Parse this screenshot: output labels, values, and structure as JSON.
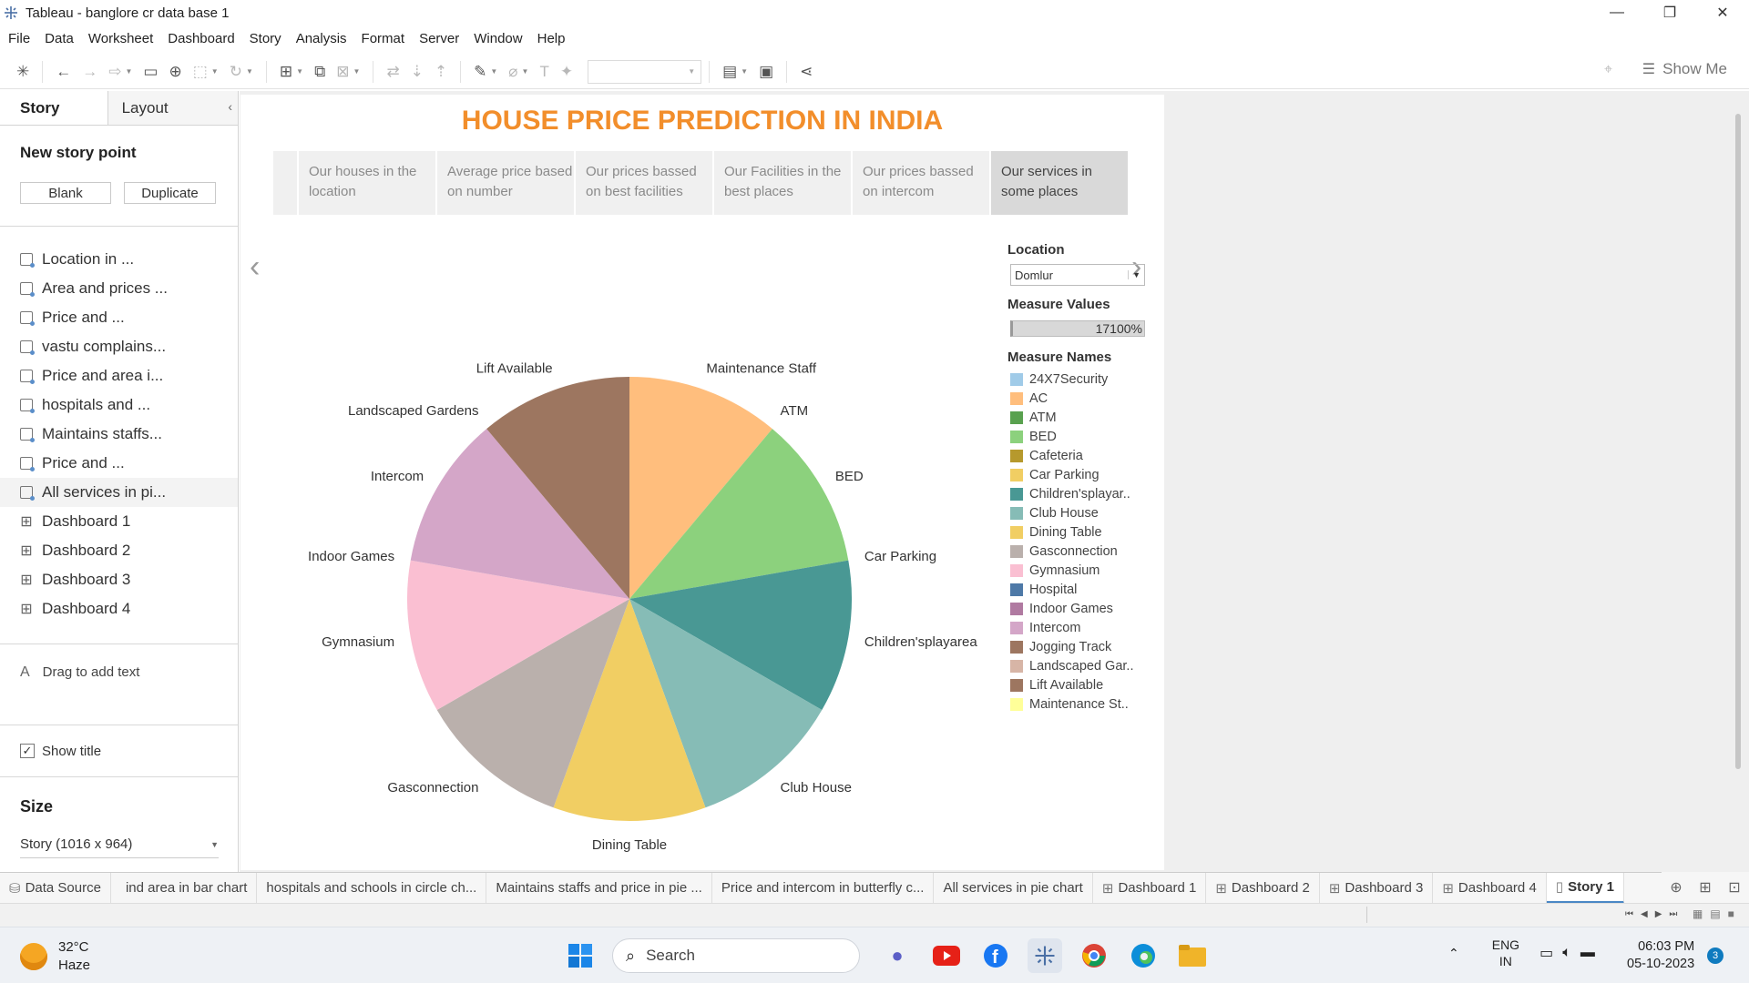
{
  "window": {
    "title": "Tableau - banglore cr data base 1"
  },
  "menu": [
    "File",
    "Data",
    "Worksheet",
    "Dashboard",
    "Story",
    "Analysis",
    "Format",
    "Server",
    "Window",
    "Help"
  ],
  "toolbar": {
    "show_me": "Show Me"
  },
  "sidebar": {
    "tab_story": "Story",
    "tab_layout": "Layout",
    "new_story_point": "New story point",
    "btn_blank": "Blank",
    "btn_duplicate": "Duplicate",
    "sheets": [
      {
        "label": "Location in ...",
        "kind": "worksheet"
      },
      {
        "label": "Area and prices ...",
        "kind": "worksheet"
      },
      {
        "label": "Price and ...",
        "kind": "worksheet"
      },
      {
        "label": "vastu complains...",
        "kind": "worksheet"
      },
      {
        "label": "Price and area i...",
        "kind": "worksheet"
      },
      {
        "label": "hospitals and ...",
        "kind": "worksheet"
      },
      {
        "label": "Maintains staffs...",
        "kind": "worksheet"
      },
      {
        "label": "Price and ...",
        "kind": "worksheet"
      },
      {
        "label": "All services in pi...",
        "kind": "worksheet"
      },
      {
        "label": "Dashboard 1",
        "kind": "dashboard"
      },
      {
        "label": "Dashboard 2",
        "kind": "dashboard"
      },
      {
        "label": "Dashboard 3",
        "kind": "dashboard"
      },
      {
        "label": "Dashboard 4",
        "kind": "dashboard"
      }
    ],
    "drag_text": "Drag to add text",
    "show_title": "Show title",
    "size_header": "Size",
    "size_value": "Story (1016 x 964)"
  },
  "story": {
    "title": "HOUSE PRICE PREDICTION IN INDIA",
    "points": [
      "Our houses in the location",
      "Average price based on number",
      "Our prices bassed on best facilities",
      "Our Facilities in the best places",
      "Our prices bassed on intercom",
      "Our services in some places"
    ],
    "selected_point": 5
  },
  "filters": {
    "location_label": "Location",
    "location_value": "Domlur",
    "measure_values_label": "Measure Values",
    "measure_values_value": "17100%",
    "measure_names_label": "Measure Names",
    "legend": [
      {
        "name": "24X7Security",
        "color": "#a0cbe8"
      },
      {
        "name": "AC",
        "color": "#ffbe7d"
      },
      {
        "name": "ATM",
        "color": "#59a14f"
      },
      {
        "name": "BED",
        "color": "#8cd17d"
      },
      {
        "name": "Cafeteria",
        "color": "#b6992d"
      },
      {
        "name": "Car Parking",
        "color": "#f1ce63"
      },
      {
        "name": "Children'splayar..",
        "color": "#499894"
      },
      {
        "name": "Club House",
        "color": "#86bcb6"
      },
      {
        "name": "Dining Table",
        "color": "#f1ce63"
      },
      {
        "name": "Gasconnection",
        "color": "#bab0ac"
      },
      {
        "name": "Gymnasium",
        "color": "#fabfd2"
      },
      {
        "name": "Hospital",
        "color": "#4e79a7"
      },
      {
        "name": "Indoor Games",
        "color": "#b07aa1"
      },
      {
        "name": "Intercom",
        "color": "#d4a6c8"
      },
      {
        "name": "Jogging Track",
        "color": "#9d7660"
      },
      {
        "name": "Landscaped Gar..",
        "color": "#d7b5a6"
      },
      {
        "name": "Lift Available",
        "color": "#9d7660"
      },
      {
        "name": "Maintenance St..",
        "color": "#ffff99"
      }
    ]
  },
  "chart_data": {
    "type": "pie",
    "title": "",
    "slices": [
      {
        "label": "Maintenance Staff",
        "value": 1,
        "color": "#ffbe7d"
      },
      {
        "label": "ATM",
        "value": 0,
        "color": "#59a14f"
      },
      {
        "label": "BED",
        "value": 1,
        "color": "#8cd17d"
      },
      {
        "label": "Car Parking",
        "value": 0,
        "color": "#f1ce63"
      },
      {
        "label": "Children'splayarea",
        "value": 1,
        "color": "#499894"
      },
      {
        "label": "Club House",
        "value": 1,
        "color": "#86bcb6"
      },
      {
        "label": "Dining Table",
        "value": 1,
        "color": "#f1ce63"
      },
      {
        "label": "Gasconnection",
        "value": 1,
        "color": "#bab0ac"
      },
      {
        "label": "Gymnasium",
        "value": 1,
        "color": "#fabfd2"
      },
      {
        "label": "Indoor Games",
        "value": 0,
        "color": "#b07aa1"
      },
      {
        "label": "Intercom",
        "value": 1,
        "color": "#d4a6c8"
      },
      {
        "label": "Landscaped Gardens",
        "value": 0,
        "color": "#d7b5a6"
      },
      {
        "label": "Lift Available",
        "value": 1,
        "color": "#9d7660"
      }
    ]
  },
  "tabs": [
    {
      "label": "Data Source",
      "icon": "database-icon"
    },
    {
      "label": "ind area in bar chart"
    },
    {
      "label": "hospitals and schools in circle ch..."
    },
    {
      "label": "Maintains staffs and price in pie ..."
    },
    {
      "label": "Price and intercom in butterfly c..."
    },
    {
      "label": "All services in pie chart"
    },
    {
      "label": "Dashboard 1",
      "icon": "dashboard-icon"
    },
    {
      "label": "Dashboard 2",
      "icon": "dashboard-icon"
    },
    {
      "label": "Dashboard 3",
      "icon": "dashboard-icon"
    },
    {
      "label": "Dashboard 4",
      "icon": "dashboard-icon"
    },
    {
      "label": "Story 1",
      "icon": "story-icon",
      "active": true
    }
  ],
  "taskbar": {
    "weather_temp": "32°C",
    "weather_desc": "Haze",
    "search": "Search",
    "lang1": "ENG",
    "lang2": "IN",
    "time": "06:03 PM",
    "date": "05-10-2023",
    "notifications": "3"
  }
}
